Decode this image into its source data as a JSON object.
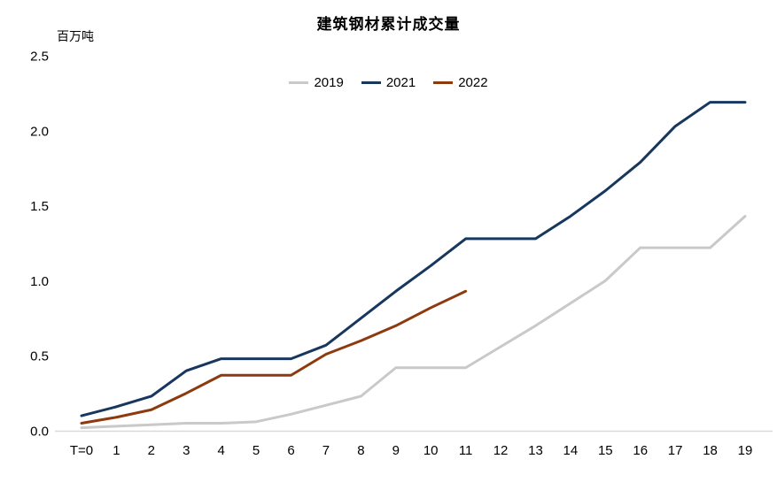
{
  "header": {
    "title": "建筑钢材累计成交量",
    "unit_label": "百万吨"
  },
  "colors": {
    "series_2019": "#c9c9c9",
    "series_2021": "#17375e",
    "series_2022": "#8c3a0e",
    "axis_line": "#d9d9d9",
    "text": "#000000"
  },
  "chart_data": {
    "type": "line",
    "title": "建筑钢材累计成交量",
    "ylabel": "百万吨",
    "xlabel": "",
    "ylim": [
      0,
      2.5
    ],
    "grid": "off",
    "legend_position": "top-center",
    "y_ticks": [
      "2.5",
      "2.0",
      "1.5",
      "1.0",
      "0.5",
      "0.0"
    ],
    "categories": [
      "T=0",
      "1",
      "2",
      "3",
      "4",
      "5",
      "6",
      "7",
      "8",
      "9",
      "10",
      "11",
      "12",
      "13",
      "14",
      "15",
      "16",
      "17",
      "18",
      "19"
    ],
    "series": [
      {
        "name": "2019",
        "color": "#c9c9c9",
        "values": [
          0.02,
          0.03,
          0.04,
          0.05,
          0.05,
          0.06,
          0.11,
          0.17,
          0.23,
          0.42,
          0.42,
          0.42,
          0.56,
          0.7,
          0.85,
          1.0,
          1.22,
          1.22,
          1.22,
          1.43
        ]
      },
      {
        "name": "2021",
        "color": "#17375e",
        "values": [
          0.1,
          0.16,
          0.23,
          0.4,
          0.48,
          0.48,
          0.48,
          0.57,
          0.75,
          0.93,
          1.1,
          1.28,
          1.28,
          1.28,
          1.43,
          1.6,
          1.79,
          2.03,
          2.19,
          2.19
        ]
      },
      {
        "name": "2022",
        "color": "#8c3a0e",
        "values": [
          0.05,
          0.09,
          0.14,
          0.25,
          0.37,
          0.37,
          0.37,
          0.51,
          0.6,
          0.7,
          0.82,
          0.93
        ]
      }
    ]
  }
}
